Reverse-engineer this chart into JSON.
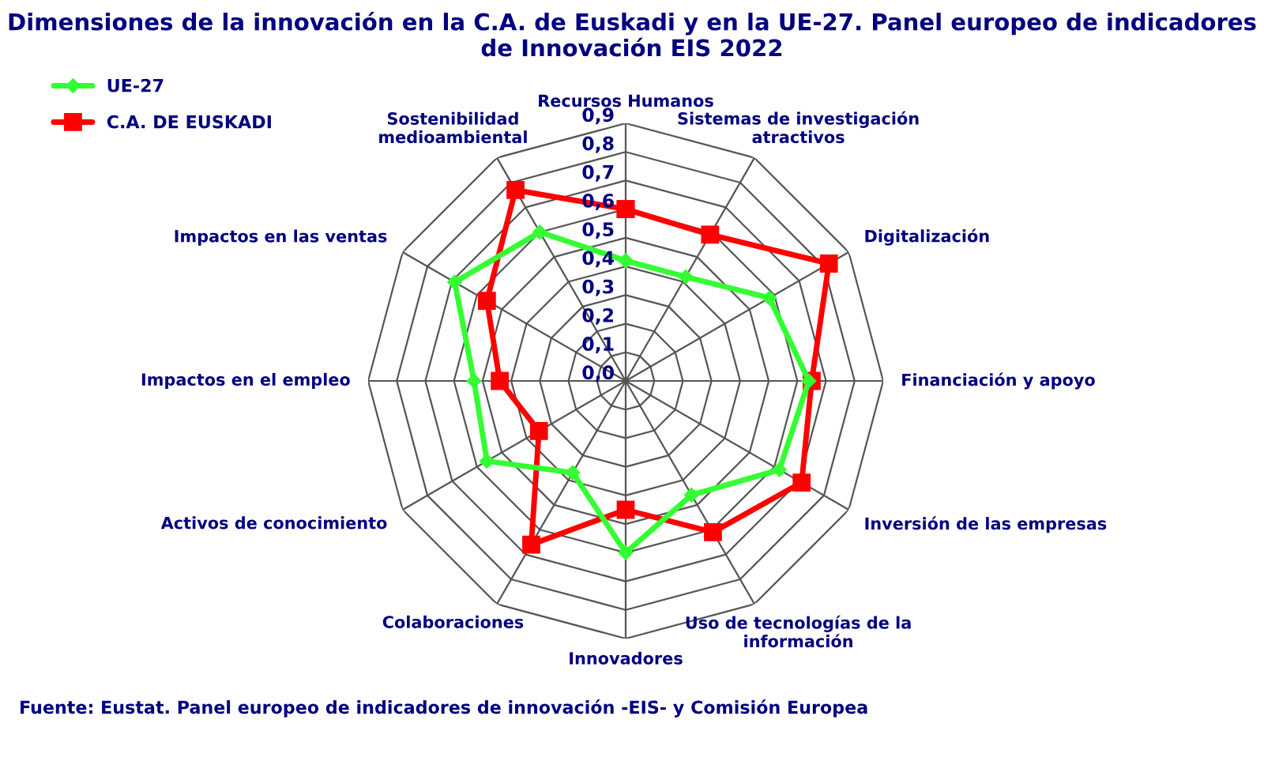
{
  "chart_data": {
    "type": "radar",
    "title": "Dimensiones de la innovación en la C.A. de Euskadi y en la UE-27. Panel europeo de indicadores de Innovación EIS 2022",
    "categories": [
      "Recursos Humanos",
      "Sistemas de investigación\natractivos",
      "Digitalización",
      "Financiación y apoyo",
      "Inversión de las empresas",
      "Uso de tecnologías de la\ninformación",
      "Innovadores",
      "Colaboraciones",
      "Activos de conocimiento",
      "Impactos en el empleo",
      "Impactos en las ventas",
      "Sostenibilidad\nmedioambiental"
    ],
    "series": [
      {
        "name": "UE-27",
        "color": "#33ff33",
        "marker": "diamond",
        "values": [
          0.42,
          0.42,
          0.58,
          0.64,
          0.62,
          0.46,
          0.6,
          0.37,
          0.56,
          0.53,
          0.69,
          0.6
        ]
      },
      {
        "name": "C.A. DE EUSKADI",
        "color": "#ff0000",
        "marker": "square",
        "values": [
          0.6,
          0.59,
          0.82,
          0.65,
          0.71,
          0.61,
          0.45,
          0.66,
          0.35,
          0.44,
          0.56,
          0.77
        ]
      }
    ],
    "ylim": [
      0,
      0.9
    ],
    "yticks": [
      {
        "value": 0,
        "label": "0,0"
      },
      {
        "value": 0.1,
        "label": "0,1"
      },
      {
        "value": 0.2,
        "label": "0,2"
      },
      {
        "value": 0.3,
        "label": "0,3"
      },
      {
        "value": 0.4,
        "label": "0,4"
      },
      {
        "value": 0.5,
        "label": "0,5"
      },
      {
        "value": 0.6,
        "label": "0,6"
      },
      {
        "value": 0.7,
        "label": "0,7"
      },
      {
        "value": 0.8,
        "label": "0,8"
      },
      {
        "value": 0.9,
        "label": "0,9"
      }
    ],
    "grid": true,
    "legend": "top left",
    "annotations": [
      "Fuente: Eustat. Panel europeo de indicadores de innovación -EIS- y Comisión Europea"
    ]
  }
}
